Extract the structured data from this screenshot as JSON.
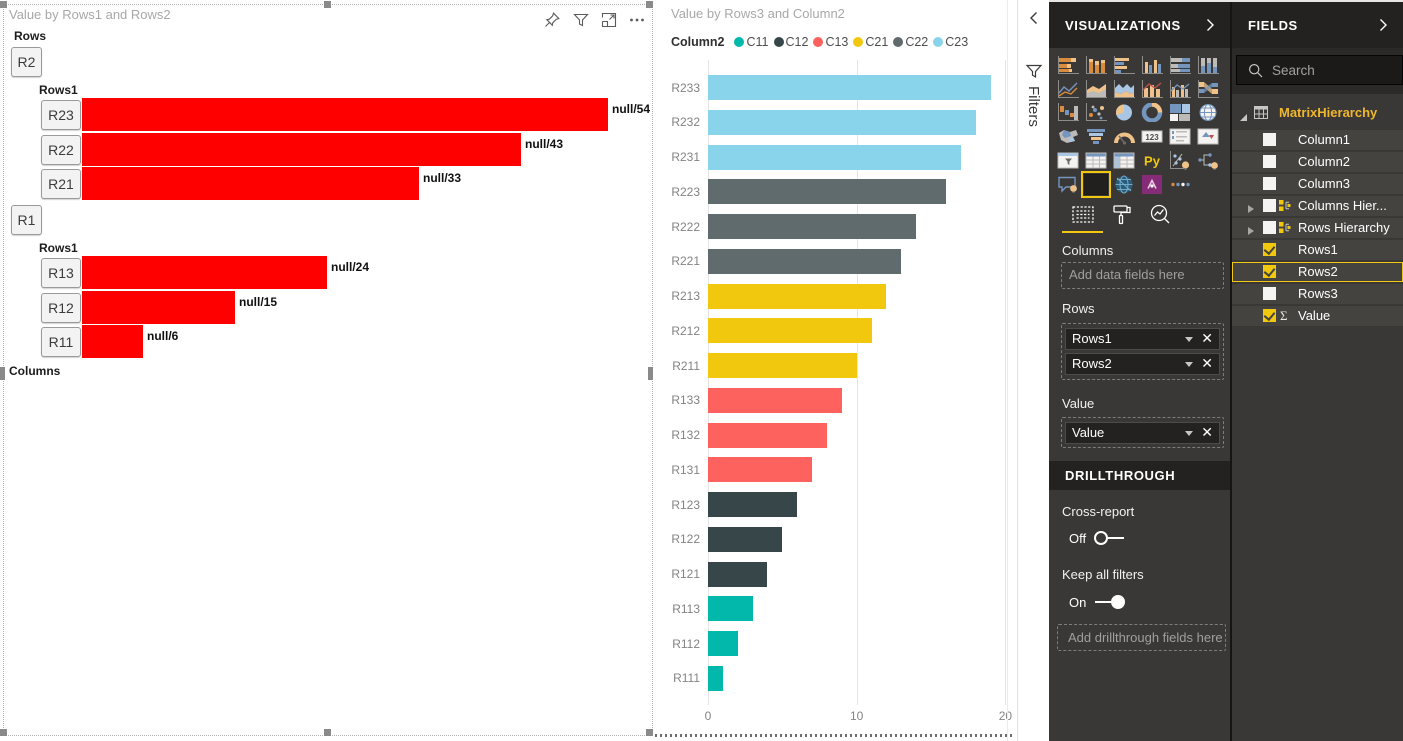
{
  "canvas": {
    "left_visual": {
      "title": "Value by Rows1 and Rows2",
      "header_icons": [
        "pin-icon",
        "filter-icon",
        "focus-mode-icon",
        "more-options-icon"
      ],
      "top_group_label": "Rows",
      "bottom_group_label": "Columns",
      "bar_color": "#fe0000"
    },
    "middle_visual": {
      "title": "Value by Rows3 and Column2"
    }
  },
  "chart_data": [
    {
      "type": "bar",
      "title": "Value by Rows1 and Rows2",
      "orientation": "horizontal",
      "grid": false,
      "groups": [
        {
          "parent_button": "R2",
          "child_field_label": "Rows1",
          "bars": [
            {
              "button": "R23",
              "value": 54,
              "data_label": "null/54"
            },
            {
              "button": "R22",
              "value": 43,
              "data_label": "null/43"
            },
            {
              "button": "R21",
              "value": 33,
              "data_label": "null/33"
            }
          ]
        },
        {
          "parent_button": "R1",
          "child_field_label": "Rows1",
          "bars": [
            {
              "button": "R13",
              "value": 24,
              "data_label": "null/24"
            },
            {
              "button": "R12",
              "value": 15,
              "data_label": "null/15"
            },
            {
              "button": "R11",
              "value": 6,
              "data_label": "null/6"
            }
          ]
        }
      ]
    },
    {
      "type": "bar",
      "title": "Value by Rows3 and Column2",
      "orientation": "horizontal",
      "xlim": [
        0,
        20
      ],
      "x_ticks": [
        0,
        10,
        20
      ],
      "grid": true,
      "legend": {
        "position": "top",
        "title": "Column2",
        "items": [
          {
            "label": "C11",
            "color": "#01B8AA"
          },
          {
            "label": "C12",
            "color": "#374649"
          },
          {
            "label": "C13",
            "color": "#FD625E"
          },
          {
            "label": "C21",
            "color": "#F2C80F"
          },
          {
            "label": "C22",
            "color": "#5F6B6D"
          },
          {
            "label": "C23",
            "color": "#8AD4EB"
          }
        ]
      },
      "categories": [
        "R233",
        "R232",
        "R231",
        "R223",
        "R222",
        "R221",
        "R213",
        "R212",
        "R211",
        "R133",
        "R132",
        "R131",
        "R123",
        "R122",
        "R121",
        "R113",
        "R112",
        "R111"
      ],
      "values": [
        19,
        18,
        17,
        16,
        14,
        13,
        12,
        11,
        10,
        9,
        8,
        7,
        6,
        5,
        4,
        3,
        2,
        1
      ],
      "series_of_category": [
        "C23",
        "C23",
        "C23",
        "C22",
        "C22",
        "C22",
        "C21",
        "C21",
        "C21",
        "C13",
        "C13",
        "C13",
        "C12",
        "C12",
        "C12",
        "C11",
        "C11",
        "C11"
      ]
    }
  ],
  "filters_pane": {
    "label": "Filters",
    "collapse_icon": "chevron-left-icon",
    "funnel_icon": "filter-icon"
  },
  "visualizations_panel": {
    "title": "VISUALIZATIONS",
    "collapse_icon": "chevron-right-icon",
    "icons": [
      "stacked-bar-chart",
      "stacked-column-chart",
      "clustered-bar-chart",
      "clustered-column-chart",
      "100-stacked-bar-chart",
      "100-stacked-column-chart",
      "line-chart",
      "area-chart",
      "stacked-area-chart",
      "line-and-stacked-column-chart",
      "line-and-clustered-column-chart",
      "ribbon-chart",
      "waterfall-chart",
      "scatter-chart",
      "pie-chart",
      "donut-chart",
      "treemap",
      "map",
      "filled-map",
      "funnel",
      "gauge",
      "card",
      "multi-row-card",
      "kpi",
      "slicer",
      "table",
      "matrix",
      "python-visual",
      "key-influencers",
      "decomposition-tree",
      "q-and-a",
      "custom-visual",
      "arcgis-map",
      "power-apps",
      "more-visuals"
    ],
    "selected_icon": "custom-visual",
    "tabs": [
      "fields",
      "format",
      "analytics"
    ],
    "selected_tab": "fields",
    "wells": {
      "columns": {
        "label": "Columns",
        "placeholder": "Add data fields here",
        "pills": []
      },
      "rows": {
        "label": "Rows",
        "pills": [
          "Rows1",
          "Rows2"
        ]
      },
      "value": {
        "label": "Value",
        "pills": [
          "Value"
        ]
      }
    },
    "drillthrough": {
      "title": "DRILLTHROUGH",
      "cross_report_label": "Cross-report",
      "cross_report_state": "Off",
      "keep_filters_label": "Keep all filters",
      "keep_filters_state": "On",
      "add_fields_placeholder": "Add drillthrough fields here"
    }
  },
  "fields_panel": {
    "title": "FIELDS",
    "collapse_icon": "chevron-right-icon",
    "search_placeholder": "Search",
    "table": {
      "name": "MatrixHierarchy",
      "expanded": true,
      "fields": [
        {
          "label": "Column1",
          "checked": false
        },
        {
          "label": "Column2",
          "checked": false
        },
        {
          "label": "Column3",
          "checked": false
        },
        {
          "label": "Columns Hier...",
          "checked": false,
          "expander": true,
          "hierarchy": true
        },
        {
          "label": "Rows Hierarchy",
          "checked": false,
          "expander": true,
          "hierarchy": true
        },
        {
          "label": "Rows1",
          "checked": true
        },
        {
          "label": "Rows2",
          "checked": true,
          "selected": true
        },
        {
          "label": "Rows3",
          "checked": false
        },
        {
          "label": "Value",
          "checked": true,
          "sigma": true
        }
      ]
    }
  }
}
